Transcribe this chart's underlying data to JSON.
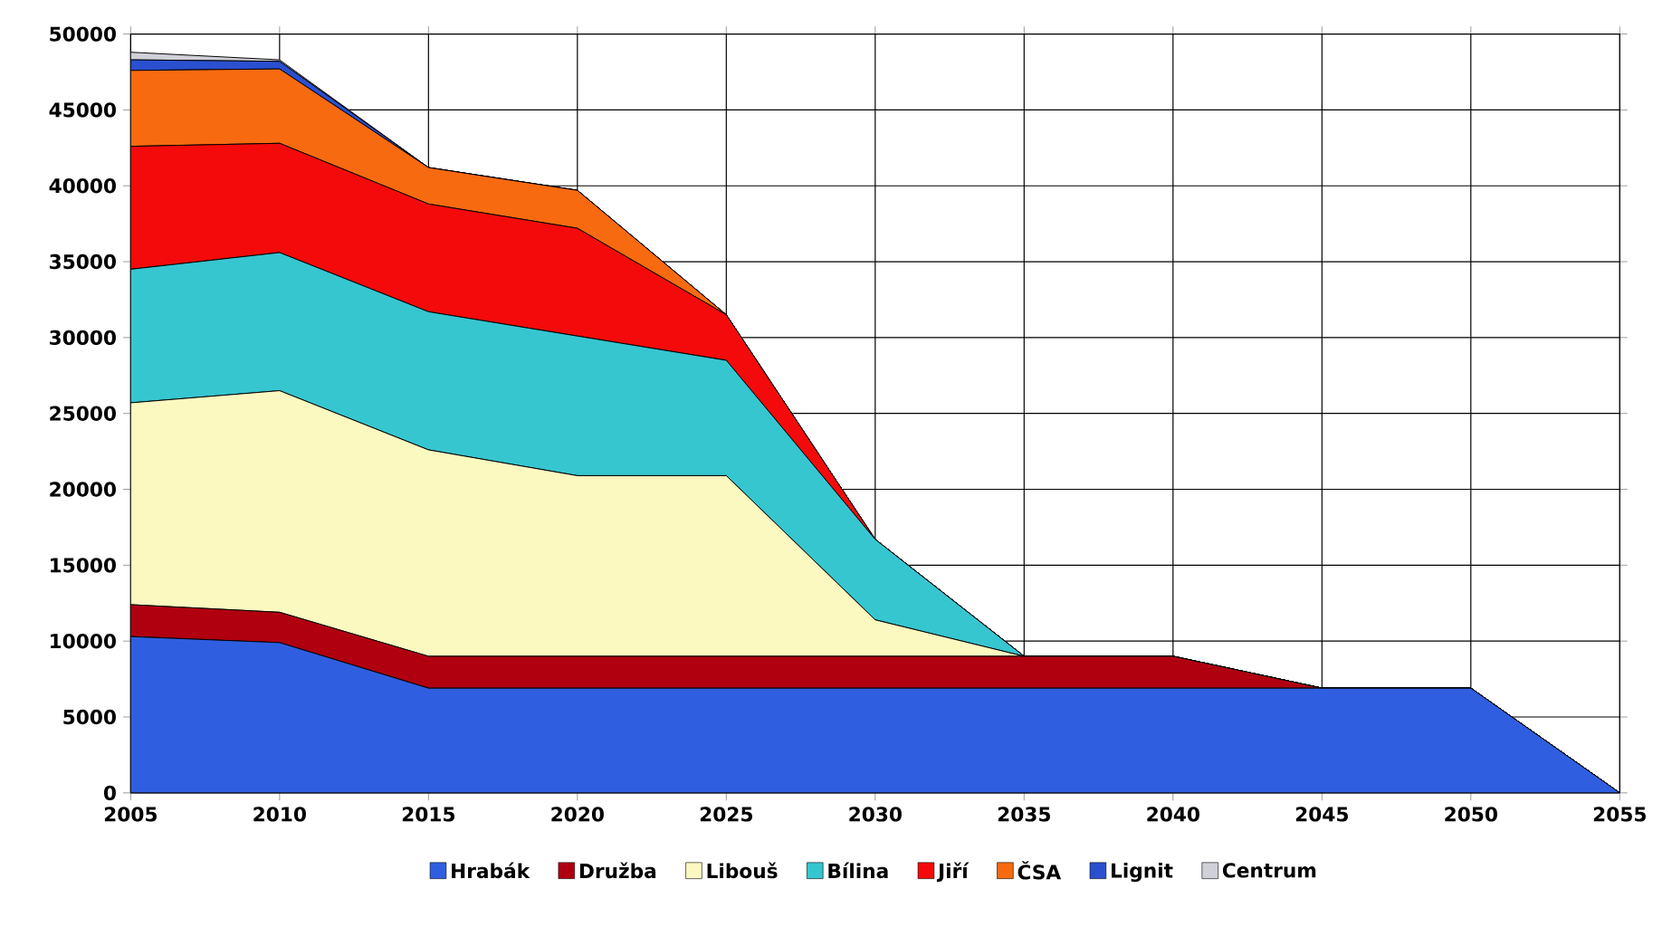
{
  "chart_data": {
    "type": "area",
    "stacked": true,
    "grid": true,
    "legend": "bottom",
    "x": [
      2005,
      2010,
      2015,
      2020,
      2025,
      2030,
      2035,
      2040,
      2045,
      2050,
      2055
    ],
    "xlim": [
      2005,
      2055
    ],
    "xticks": [
      2005,
      2010,
      2015,
      2020,
      2025,
      2030,
      2035,
      2040,
      2045,
      2050,
      2055
    ],
    "ylim": [
      0,
      50000
    ],
    "yticks": [
      0,
      5000,
      10000,
      15000,
      20000,
      25000,
      30000,
      35000,
      40000,
      45000,
      50000
    ],
    "series": [
      {
        "name": "Hrabák",
        "color": "#2f5fe0",
        "values": [
          10300,
          9900,
          6900,
          6900,
          6900,
          6900,
          6900,
          6900,
          6900,
          6900,
          0
        ]
      },
      {
        "name": "Družba",
        "color": "#b00010",
        "values": [
          2100,
          2000,
          2100,
          2100,
          2100,
          2100,
          2100,
          2100,
          0,
          0,
          0
        ]
      },
      {
        "name": "Libouš",
        "color": "#fbf8c0",
        "values": [
          13300,
          14600,
          13600,
          11900,
          11900,
          2400,
          0,
          0,
          0,
          0,
          0
        ]
      },
      {
        "name": "Bílina",
        "color": "#36c6d0",
        "values": [
          8800,
          9100,
          9100,
          9200,
          7600,
          5300,
          0,
          0,
          0,
          0,
          0
        ]
      },
      {
        "name": "Jiří",
        "color": "#f40a0a",
        "values": [
          8100,
          7200,
          7100,
          7100,
          3000,
          0,
          0,
          0,
          0,
          0,
          0
        ]
      },
      {
        "name": "ČSA",
        "color": "#f76a10",
        "values": [
          5000,
          4900,
          2400,
          2500,
          0,
          0,
          0,
          0,
          0,
          0,
          0
        ]
      },
      {
        "name": "Lignit",
        "color": "#2a50d0",
        "values": [
          700,
          500,
          0,
          0,
          0,
          0,
          0,
          0,
          0,
          0,
          0
        ]
      },
      {
        "name": "Centrum",
        "color": "#d0d0d8",
        "values": [
          500,
          100,
          0,
          0,
          0,
          0,
          0,
          0,
          0,
          0,
          0
        ]
      }
    ]
  }
}
